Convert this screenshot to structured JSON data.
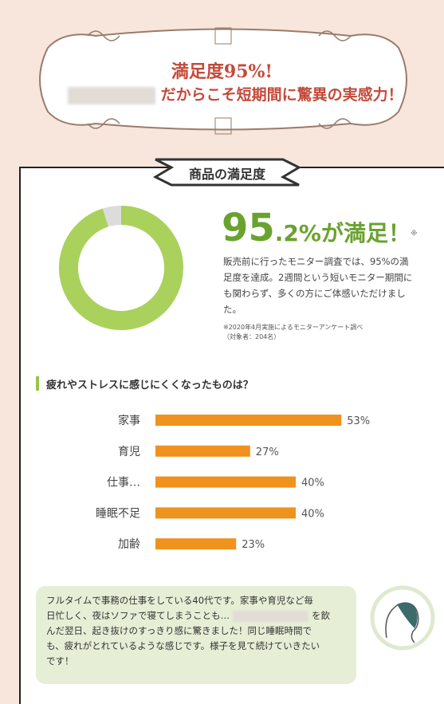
{
  "header": {
    "title": "満足度95%!",
    "subtitle": "だからこそ短期間に驚異の実感力！"
  },
  "ribbon": "商品の満足度",
  "satisfaction": {
    "type": "donut",
    "values": [
      95.2,
      4.8
    ],
    "colors": [
      "#a9d15c",
      "#dcdcdc"
    ],
    "headline": {
      "big": "95",
      "small": ".2%",
      "suffix": "が満足！",
      "mark": "※"
    },
    "lines": [
      "販売前に行ったモニター調査では、95%の満",
      "足度を達成。2週間という短いモニター期間に",
      "も関わらず、多くの方にご体感いただけまし",
      "た。"
    ],
    "note": [
      "※2020年4月実施によるモニターアンケート調べ",
      "（対象者：204名）"
    ]
  },
  "chart_data": {
    "type": "bar",
    "orientation": "horizontal",
    "title": "疲れやストレスに感じにくくなったものは？",
    "categories": [
      "家事",
      "育児",
      "仕事…",
      "睡眠不足",
      "加齢"
    ],
    "values": [
      53,
      27,
      40,
      40,
      23
    ],
    "value_labels": [
      "53%",
      "27%",
      "40%",
      "40%",
      "23%"
    ],
    "color": "#f0921e"
  },
  "testimonial": {
    "lines": [
      "フルタイムで事務の仕事をしている40代です。家事や育児など毎",
      [
        "日忙しく、夜はソファで寝てしまうことも…",
        "を飲"
      ],
      "んだ翌日、起き抜けのすっきり感に驚きました！同じ睡眠時間で",
      "も、疲れがとれているような感じです。様子を見て続けていきたい",
      "です！"
    ]
  }
}
